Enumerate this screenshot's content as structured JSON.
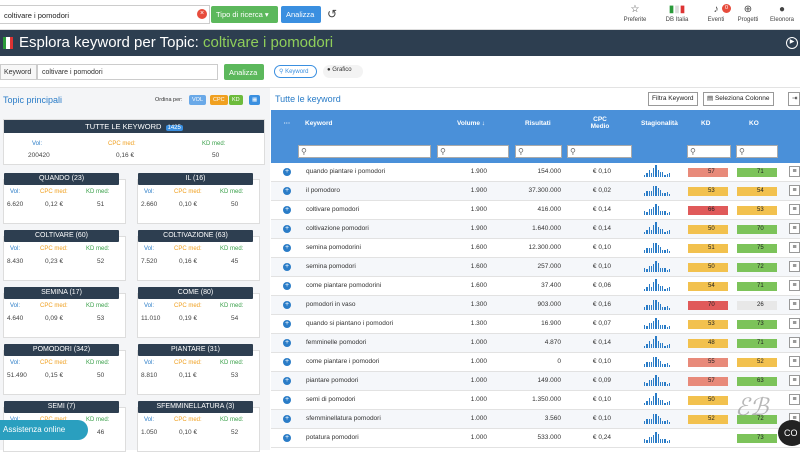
{
  "top": {
    "search_value": "coltivare i pomodori",
    "tipo_label": "Tipo di ricerca",
    "analizza_label": "Analizza",
    "icons": [
      {
        "name": "preferite",
        "label": "Preferite",
        "glyph": "☆"
      },
      {
        "name": "db-italia",
        "label": "DB Italia",
        "glyph": "▮▮"
      },
      {
        "name": "eventi",
        "label": "Eventi",
        "glyph": "🔔"
      },
      {
        "name": "progetti",
        "label": "Progetti",
        "glyph": "🌐"
      },
      {
        "name": "eleonora",
        "label": "Eleonora",
        "glyph": "👤"
      }
    ],
    "eventi_badge": "0"
  },
  "header": {
    "title_prefix": "Esplora keyword per Topic: ",
    "title_topic": "coltivare i pomodori"
  },
  "bar": {
    "kw_label": "Keyword",
    "kw_value": "coltivare i pomodori",
    "analizza_label": "Analizza",
    "keyword_tab": "Keyword",
    "grafico_tab": "Grafico"
  },
  "left": {
    "title": "Topic principali",
    "ordina": "Ordina per:",
    "sort": [
      "VOL",
      "CPC",
      "KD"
    ],
    "labels": {
      "vol": "Vol:",
      "cpc": "CPC med:",
      "kd": "KD med:"
    },
    "all": {
      "title": "TUTTE LE KEYWORD",
      "count": "1425",
      "vol": "200420",
      "cpc": "0,16 €",
      "kd": "50"
    },
    "cards": [
      {
        "title": "QUANDO (23)",
        "vol": "6.620",
        "cpc": "0,12 €",
        "kd": "51"
      },
      {
        "title": "IL (16)",
        "vol": "2.660",
        "cpc": "0,10 €",
        "kd": "50"
      },
      {
        "title": "COLTIVARE (60)",
        "vol": "8.430",
        "cpc": "0,23 €",
        "kd": "52"
      },
      {
        "title": "COLTIVAZIONE (63)",
        "vol": "7.520",
        "cpc": "0,16 €",
        "kd": "45"
      },
      {
        "title": "SEMINA (17)",
        "vol": "4.640",
        "cpc": "0,09 €",
        "kd": "53"
      },
      {
        "title": "COME (80)",
        "vol": "11.010",
        "cpc": "0,19 €",
        "kd": "54"
      },
      {
        "title": "POMODORI (342)",
        "vol": "51.490",
        "cpc": "0,15 €",
        "kd": "50"
      },
      {
        "title": "PIANTARE (31)",
        "vol": "8.810",
        "cpc": "0,11 €",
        "kd": "53"
      },
      {
        "title": "SEMI (7)",
        "vol": "",
        "cpc": "",
        "kd": "46"
      },
      {
        "title": "SFEMMINELLATURA (3)",
        "vol": "1.050",
        "cpc": "0,10 €",
        "kd": "52"
      }
    ],
    "assistenza": "Assistenza online"
  },
  "right": {
    "title": "Tutte le keyword",
    "filtra": "Filtra Keyword",
    "seleziona": "Seleziona Colonne",
    "headers": {
      "dots": "···",
      "keyword": "Keyword",
      "volume": "Volume ↓",
      "risultati": "Risultati",
      "cpc": "CPC Medio",
      "stag": "Stagionalità",
      "kd": "KD",
      "ko": "KO"
    },
    "rows": [
      {
        "kw": "quando piantare i pomodori",
        "vol": "1.900",
        "ris": "154.000",
        "cpc": "€ 0,10",
        "kd": 57,
        "ko": 71
      },
      {
        "kw": "il pomodoro",
        "vol": "1.900",
        "ris": "37.300.000",
        "cpc": "€ 0,02",
        "kd": 53,
        "ko": 54
      },
      {
        "kw": "coltivare pomodori",
        "vol": "1.900",
        "ris": "416.000",
        "cpc": "€ 0,14",
        "kd": 66,
        "ko": 53
      },
      {
        "kw": "coltivazione pomodori",
        "vol": "1.900",
        "ris": "1.640.000",
        "cpc": "€ 0,14",
        "kd": 50,
        "ko": 70
      },
      {
        "kw": "semina pomodorini",
        "vol": "1.600",
        "ris": "12.300.000",
        "cpc": "€ 0,10",
        "kd": 51,
        "ko": 75
      },
      {
        "kw": "semina pomodori",
        "vol": "1.600",
        "ris": "257.000",
        "cpc": "€ 0,10",
        "kd": 50,
        "ko": 72
      },
      {
        "kw": "come piantare pomodorini",
        "vol": "1.600",
        "ris": "37.400",
        "cpc": "€ 0,06",
        "kd": 54,
        "ko": 71
      },
      {
        "kw": "pomodori in vaso",
        "vol": "1.300",
        "ris": "903.000",
        "cpc": "€ 0,16",
        "kd": 70,
        "ko": 26
      },
      {
        "kw": "quando si piantano i pomodori",
        "vol": "1.300",
        "ris": "16.900",
        "cpc": "€ 0,07",
        "kd": 53,
        "ko": 73
      },
      {
        "kw": "femminelle pomodori",
        "vol": "1.000",
        "ris": "4.870",
        "cpc": "€ 0,14",
        "kd": 48,
        "ko": 71
      },
      {
        "kw": "come piantare i pomodori",
        "vol": "1.000",
        "ris": "0",
        "cpc": "€ 0,10",
        "kd": 55,
        "ko": 52
      },
      {
        "kw": "piantare pomodori",
        "vol": "1.000",
        "ris": "149.000",
        "cpc": "€ 0,09",
        "kd": 57,
        "ko": 63
      },
      {
        "kw": "semi di pomodori",
        "vol": "1.000",
        "ris": "1.350.000",
        "cpc": "€ 0,10",
        "kd": 50,
        "ko": ""
      },
      {
        "kw": "sfemminellatura pomodori",
        "vol": "1.000",
        "ris": "3.560",
        "cpc": "€ 0,10",
        "kd": 52,
        "ko": 72
      },
      {
        "kw": "potatura pomodori",
        "vol": "1.000",
        "ris": "533.000",
        "cpc": "€ 0,24",
        "kd": "",
        "ko": 73
      }
    ]
  }
}
